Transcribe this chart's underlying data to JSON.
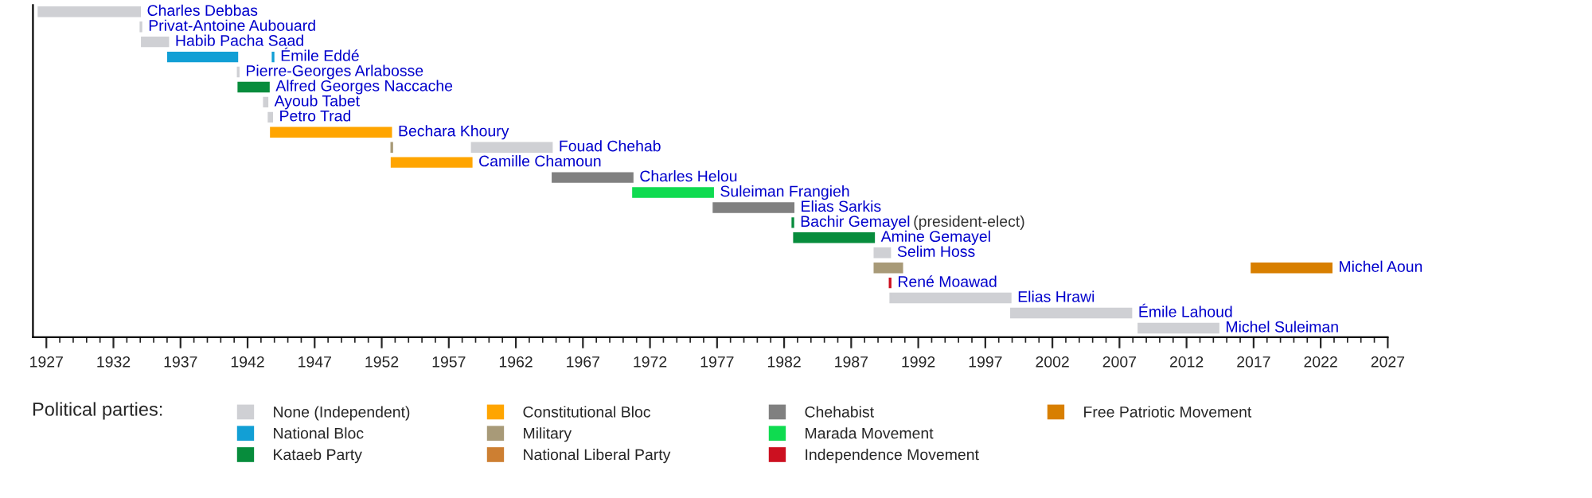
{
  "chart_data": {
    "type": "bar",
    "orientation": "horizontal",
    "legend_title": "Political parties:",
    "categories": [
      "Charles Debbas",
      "Privat-Antoine Aubouard",
      "Habib Pacha Saad",
      "Émile Eddé",
      "Pierre-Georges Arlabosse",
      "Alfred Georges Naccache",
      "Ayoub Tabet",
      "Petro Trad",
      "Bechara Khoury",
      "Fouad Chehab",
      "Camille Chamoun",
      "Charles Helou",
      "Suleiman Frangieh",
      "Elias Sarkis",
      "Bachir Gemayel",
      "Amine Gemayel",
      "Selim Hoss",
      "Michel Aoun",
      "René Moawad",
      "Elias Hrawi",
      "Émile Lahoud",
      "Michel Suleiman"
    ],
    "series": [
      {
        "name": "None (Independent)",
        "color": "#cfd0d4",
        "base": [
          1926.4,
          1934.0,
          1934.1,
          null,
          1941.25,
          null,
          1943.2,
          1943.55,
          null,
          1958.7,
          null,
          null,
          null,
          null,
          null,
          null,
          1988.72,
          null,
          null,
          1989.9,
          1998.9,
          2008.4
        ],
        "values": [
          7.6,
          0.1,
          2,
          null,
          0.1,
          null,
          0.3,
          0.3,
          null,
          6,
          null,
          null,
          null,
          null,
          null,
          null,
          1.2,
          null,
          null,
          9,
          9,
          6
        ]
      },
      {
        "name": "National Bloc",
        "color": "#129fd5",
        "base": [
          null,
          null,
          null,
          1936.05,
          null,
          null,
          null,
          null,
          null,
          null,
          null,
          null,
          null,
          null,
          null,
          null,
          null,
          null,
          null,
          null,
          null,
          null
        ],
        "values": [
          null,
          null,
          null,
          5.2,
          null,
          null,
          null,
          null,
          null,
          null,
          null,
          null,
          null,
          null,
          null,
          null,
          null,
          null,
          null,
          null,
          null,
          null
        ]
      },
      {
        "color": "#129fd5",
        "base": [
          null,
          null,
          null,
          1943.85,
          null,
          null,
          null,
          null,
          null,
          null,
          null,
          null,
          null,
          null,
          null,
          null,
          null,
          null,
          null,
          null,
          null,
          null
        ],
        "values": [
          null,
          null,
          null,
          0.1,
          null,
          null,
          null,
          null,
          null,
          null,
          null,
          null,
          null,
          null,
          null,
          null,
          null,
          null,
          null,
          null,
          null,
          null
        ]
      },
      {
        "name": "Kataeb Party",
        "color": "#078c3c",
        "base": [
          null,
          null,
          null,
          null,
          null,
          1941.3,
          null,
          null,
          null,
          null,
          null,
          null,
          null,
          null,
          1982.6,
          1982.72,
          null,
          null,
          null,
          null,
          null,
          null
        ],
        "values": [
          null,
          null,
          null,
          null,
          null,
          2.3,
          null,
          null,
          null,
          null,
          null,
          null,
          null,
          null,
          0.1,
          6,
          null,
          null,
          null,
          null,
          null,
          null
        ]
      },
      {
        "name": "Constitutional Bloc",
        "color": "#ffa500",
        "base": [
          null,
          null,
          null,
          null,
          null,
          null,
          null,
          null,
          1943.72,
          null,
          1952.72,
          null,
          null,
          null,
          null,
          null,
          null,
          null,
          null,
          null,
          null,
          null
        ],
        "values": [
          null,
          null,
          null,
          null,
          null,
          null,
          null,
          null,
          9,
          null,
          6,
          null,
          null,
          null,
          null,
          null,
          null,
          null,
          null,
          null,
          null,
          null
        ]
      },
      {
        "name": "Military",
        "color": "#a89a78",
        "base": [
          null,
          null,
          null,
          null,
          null,
          null,
          null,
          null,
          null,
          1952.7,
          null,
          null,
          null,
          null,
          null,
          null,
          null,
          1988.72,
          null,
          null,
          null,
          null
        ],
        "values": [
          null,
          null,
          null,
          null,
          null,
          null,
          null,
          null,
          null,
          0.1,
          null,
          null,
          null,
          null,
          null,
          null,
          null,
          2.1,
          null,
          null,
          null,
          null
        ]
      },
      {
        "name": "National Liberal Party",
        "color": "#cd7f32",
        "base": [
          null,
          null,
          null,
          null,
          null,
          null,
          null,
          null,
          null,
          null,
          null,
          null,
          null,
          null,
          null,
          null,
          null,
          null,
          null,
          null,
          null,
          null
        ],
        "values": [
          null,
          null,
          null,
          null,
          null,
          null,
          null,
          null,
          null,
          null,
          null,
          null,
          null,
          null,
          null,
          null,
          null,
          null,
          null,
          null,
          null,
          null
        ]
      },
      {
        "name": "Chehabist",
        "color": "#808080",
        "base": [
          null,
          null,
          null,
          null,
          null,
          null,
          null,
          null,
          null,
          null,
          null,
          1964.72,
          null,
          1976.72,
          null,
          null,
          null,
          null,
          null,
          null,
          null,
          null
        ],
        "values": [
          null,
          null,
          null,
          null,
          null,
          null,
          null,
          null,
          null,
          null,
          null,
          6,
          null,
          6,
          null,
          null,
          null,
          null,
          null,
          null,
          null,
          null
        ]
      },
      {
        "name": "Marada Movement",
        "color": "#0fdb50",
        "base": [
          null,
          null,
          null,
          null,
          null,
          null,
          null,
          null,
          null,
          null,
          null,
          null,
          1970.72,
          null,
          null,
          null,
          null,
          null,
          null,
          null,
          null,
          null
        ],
        "values": [
          null,
          null,
          null,
          null,
          null,
          null,
          null,
          null,
          null,
          null,
          null,
          null,
          6,
          null,
          null,
          null,
          null,
          null,
          null,
          null,
          null,
          null
        ]
      },
      {
        "name": "Independence Movement",
        "color": "#cc1020",
        "base": [
          null,
          null,
          null,
          null,
          null,
          null,
          null,
          null,
          null,
          null,
          null,
          null,
          null,
          null,
          null,
          null,
          null,
          null,
          1989.85,
          null,
          null,
          null
        ],
        "values": [
          null,
          null,
          null,
          null,
          null,
          null,
          null,
          null,
          null,
          null,
          null,
          null,
          null,
          null,
          null,
          null,
          null,
          null,
          0.1,
          null,
          null,
          null
        ]
      },
      {
        "name": "Free Patriotic Movement",
        "color": "#d87f00",
        "base": [
          null,
          null,
          null,
          null,
          null,
          null,
          null,
          null,
          null,
          null,
          null,
          null,
          null,
          null,
          null,
          null,
          null,
          2016.83,
          null,
          null,
          null,
          null
        ],
        "values": [
          null,
          null,
          null,
          null,
          null,
          null,
          null,
          null,
          null,
          null,
          null,
          null,
          null,
          null,
          null,
          null,
          null,
          6,
          null,
          null,
          null,
          null
        ]
      }
    ],
    "annotations": [
      "(president-elect)"
    ],
    "xlim": [
      1926,
      2027
    ],
    "xticks": [
      1927,
      1932,
      1937,
      1942,
      1947,
      1952,
      1957,
      1962,
      1967,
      1972,
      1977,
      1982,
      1987,
      1992,
      1997,
      2002,
      2007,
      2012,
      2017,
      2022,
      2027
    ],
    "tick_labels": "x",
    "grid": false,
    "legend": "bottom"
  }
}
